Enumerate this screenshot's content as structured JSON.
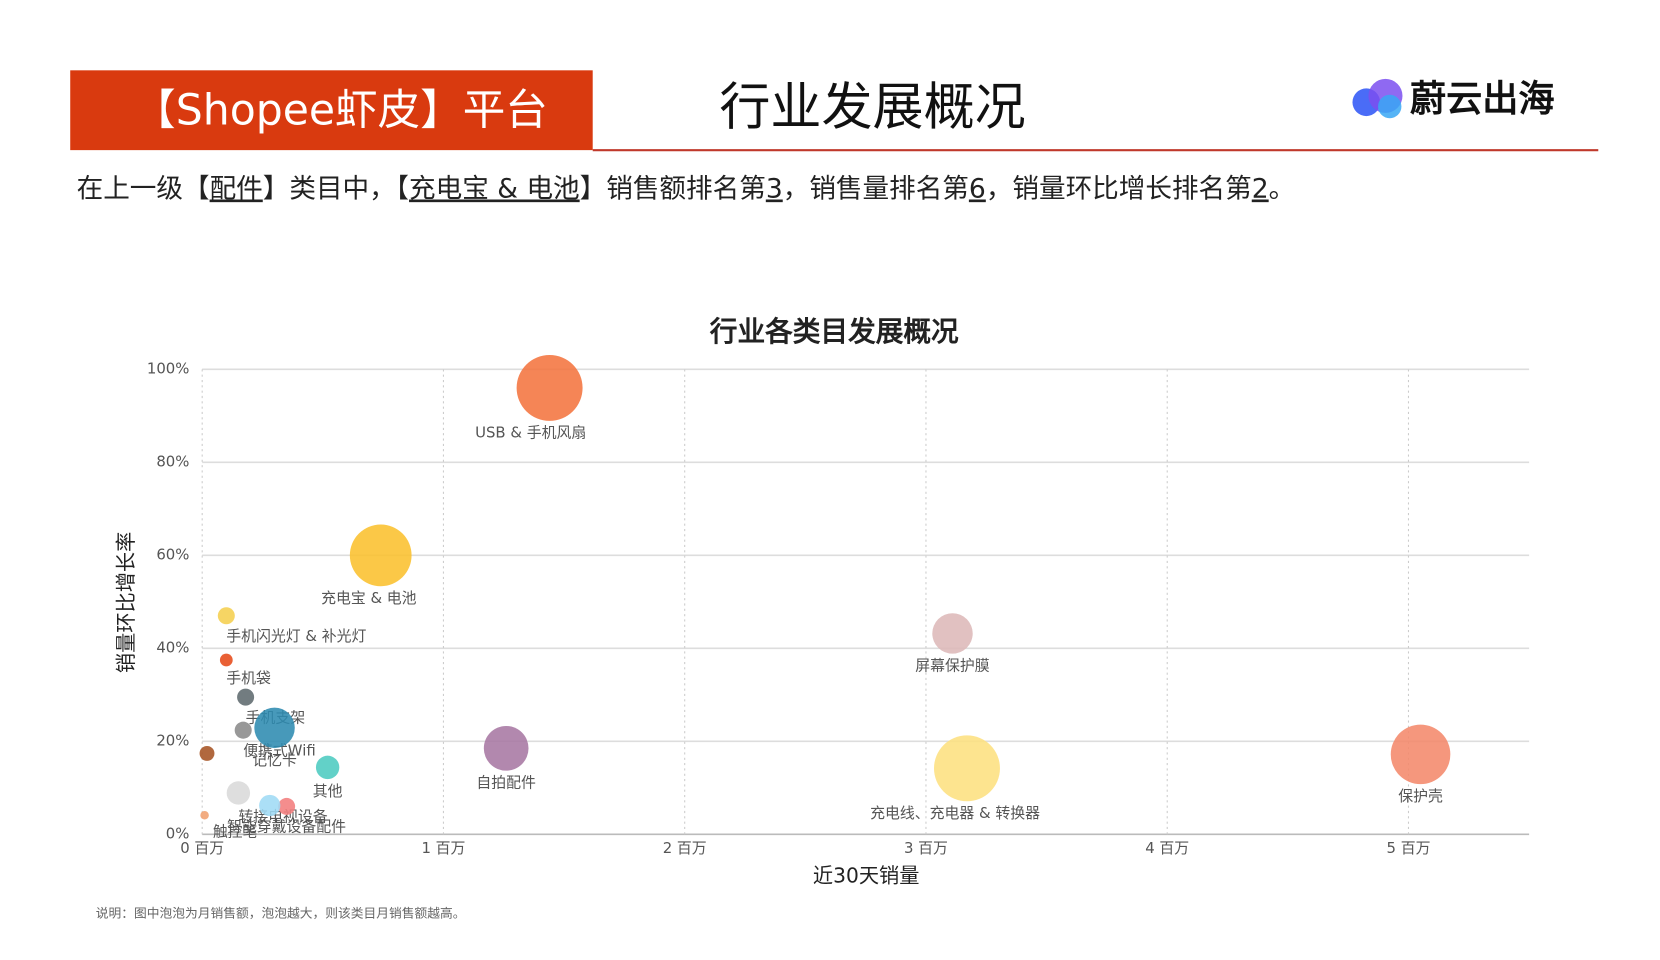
{
  "header": {
    "badge": "【Shopee虾皮】平台",
    "title": "行业发展概况",
    "logo": "蔚云出海"
  },
  "summary": [
    {
      "text": "在上一级【",
      "underline": false
    },
    {
      "text": "配件",
      "underline": true
    },
    {
      "text": "】类目中，【",
      "underline": false
    },
    {
      "text": "充电宝 & 电池",
      "underline": true
    },
    {
      "text": "】销售额排名第",
      "underline": false
    },
    {
      "text": "3",
      "underline": true
    },
    {
      "text": "，销售量排名第",
      "underline": false
    },
    {
      "text": "6",
      "underline": true
    },
    {
      "text": "，销量环比增长排名第",
      "underline": false
    },
    {
      "text": "2",
      "underline": true
    },
    {
      "text": "。",
      "underline": false
    }
  ],
  "chart_data": {
    "type": "bubble",
    "title": "行业各类目发展概况",
    "x_label": "近30天销量",
    "y_label": "销量环比增长率",
    "xlim": [
      0,
      5.5
    ],
    "xticks": [
      {
        "value": 0,
        "label": "0 百万"
      },
      {
        "value": 1,
        "label": "1 百万"
      },
      {
        "value": 2,
        "label": "2 百万"
      },
      {
        "value": 3,
        "label": "3 百万"
      },
      {
        "value": 4,
        "label": "4 百万"
      },
      {
        "value": 5,
        "label": "5 百万"
      }
    ],
    "ylim": [
      0,
      100
    ],
    "yticks": [
      {
        "value": 0,
        "label": "0%"
      },
      {
        "value": 20,
        "label": "20%"
      },
      {
        "value": 40,
        "label": "40%"
      },
      {
        "value": 60,
        "label": "60%"
      },
      {
        "value": 80,
        "label": "80%"
      },
      {
        "value": 100,
        "label": "100%"
      }
    ],
    "grid": true,
    "series": [
      {
        "name": "USB & 手机风扇",
        "color": "#f4743f",
        "x": 1.44,
        "y": 96,
        "size": 961
      },
      {
        "name": "充电宝 & 电池",
        "color": "#fbc02d",
        "x": 0.74,
        "y": 60,
        "size": 841
      },
      {
        "name": "手机闪光灯 & 补光灯",
        "color": "#f5cf4f",
        "x": 0.1,
        "y": 47,
        "size": 64
      },
      {
        "name": "手机袋",
        "color": "#e64a19",
        "x": 0.1,
        "y": 37.5,
        "size": 36
      },
      {
        "name": "手机支架",
        "color": "#5f6a6e",
        "x": 0.18,
        "y": 29.5,
        "size": 64
      },
      {
        "name": "便携式Wifi",
        "color": "#8a8a8a",
        "x": 0.17,
        "y": 22.4,
        "size": 64
      },
      {
        "name": "记忆卡",
        "color": "#2e8bb0",
        "x": 0.3,
        "y": 22.9,
        "size": 361
      },
      {
        "name": "其他",
        "color": "#4ccbc0",
        "x": 0.52,
        "y": 14.4,
        "size": 121
      },
      {
        "name": "自拍配件",
        "color": "#a777a3",
        "x": 1.26,
        "y": 18.5,
        "size": 441
      },
      {
        "name": "屏幕保护膜",
        "color": "#ddb8b8",
        "x": 3.11,
        "y": 43.2,
        "size": 361
      },
      {
        "name": "充电线、充电器 & 转换器",
        "color": "#fde07f",
        "x": 3.17,
        "y": 14.2,
        "size": 961
      },
      {
        "name": "保护壳",
        "color": "#f4896b",
        "x": 5.05,
        "y": 17.2,
        "size": 784
      },
      {
        "name": null,
        "color": "#a65323",
        "x": 0.02,
        "y": 17.4,
        "size": 49
      },
      {
        "name": "转接电视设备",
        "color": "#d9d9d9",
        "x": 0.15,
        "y": 8.9,
        "size": 121
      },
      {
        "name": "触控笔",
        "color": "#f0a070",
        "x": 0.01,
        "y": 4.1,
        "size": 16
      },
      {
        "name": "智能穿戴设备配件",
        "color": "#f27d7d",
        "x": 0.35,
        "y": 6,
        "size": 64
      },
      {
        "name": null,
        "color": "#9fdbf5",
        "x": 0.28,
        "y": 6.2,
        "size": 100
      }
    ]
  },
  "note": "说明：图中泡泡为月销售额，泡泡越大，则该类目月销售额越高。"
}
